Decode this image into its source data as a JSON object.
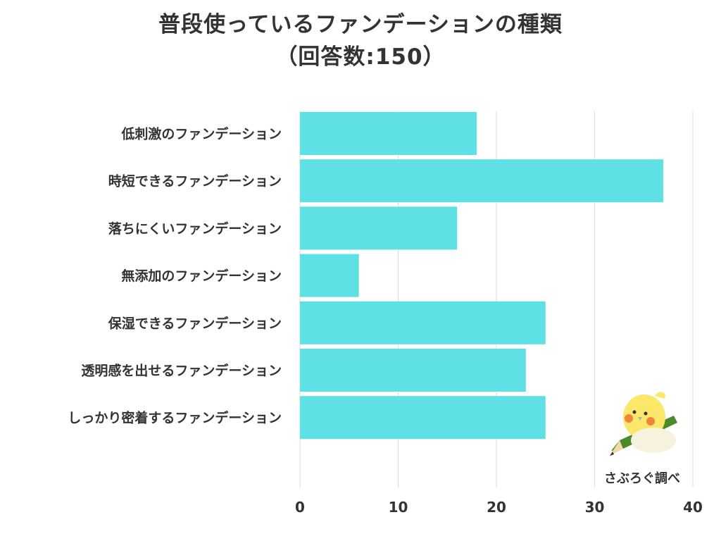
{
  "chart_data": {
    "type": "bar",
    "orientation": "horizontal",
    "title": "普段使っているファンデーションの種類",
    "subtitle": "（回答数:150）",
    "categories": [
      "低刺激のファンデーション",
      "時短できるファンデーション",
      "落ちにくいファンデーション",
      "無添加のファンデーション",
      "保湿できるファンデーション",
      "透明感を出せるファンデーション",
      "しっかり密着するファンデーション"
    ],
    "values": [
      18,
      37,
      16,
      6,
      25,
      23,
      25
    ],
    "xlim": [
      0,
      40
    ],
    "xticks": [
      "0",
      "10",
      "20",
      "30",
      "40"
    ],
    "grid": true,
    "bar_color": "#5ee0e4",
    "grid_color": "#dddddd"
  },
  "credit": {
    "text": "さぶろぐ調べ",
    "mascot": "bird-mascot-icon"
  }
}
